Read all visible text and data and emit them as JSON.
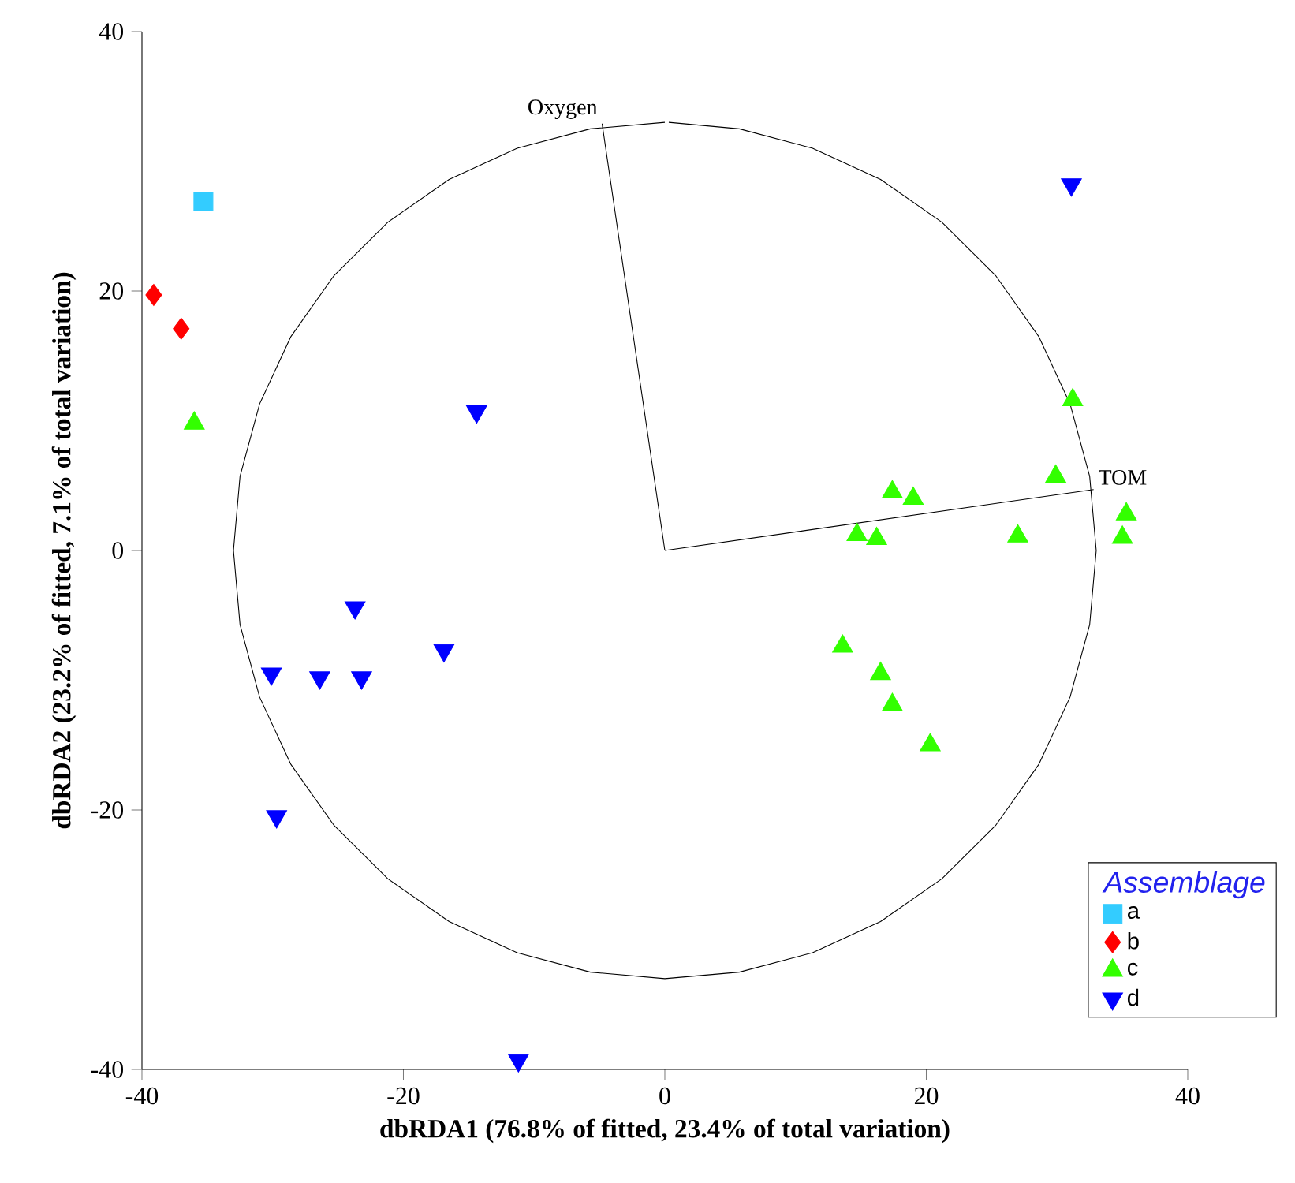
{
  "chart_data": {
    "type": "scatter",
    "xlabel": "dbRDA1 (76.8% of fitted, 23.4% of total variation)",
    "ylabel": "dbRDA2 (23.2% of fitted, 7.1% of total variation)",
    "legend_title": "Assemblage",
    "legend": "bottom right",
    "grid": false,
    "xlim": [
      -40,
      40
    ],
    "ylim": [
      -40,
      40
    ],
    "xticks": [
      -40,
      -20,
      0,
      20,
      40
    ],
    "yticks": [
      -40,
      -20,
      0,
      20,
      40
    ],
    "series": [
      {
        "name": "a",
        "color": "#33ccff",
        "marker": "square",
        "x": [
          -35.3
        ],
        "values": [
          26.9
        ]
      },
      {
        "name": "b",
        "color": "#ff0000",
        "marker": "diamond",
        "x": [
          -39.1,
          -37.0
        ],
        "values": [
          19.7,
          17.1
        ]
      },
      {
        "name": "c",
        "color": "#33ff00",
        "marker": "triangle",
        "x": [
          -36.0,
          31.2,
          29.9,
          17.4,
          19.0,
          35.3,
          14.7,
          16.2,
          27.0,
          35.0,
          13.6,
          16.5,
          17.4,
          20.3
        ],
        "values": [
          9.8,
          11.6,
          5.7,
          4.5,
          4.0,
          2.8,
          1.2,
          0.9,
          1.1,
          1.0,
          -7.4,
          -9.5,
          -11.9,
          -15.0
        ]
      },
      {
        "name": "d",
        "color": "#0000ff",
        "marker": "triangle-down",
        "x": [
          31.1,
          -14.4,
          -23.7,
          -16.9,
          -30.1,
          -26.4,
          -23.2,
          -29.7,
          -11.2
        ],
        "values": [
          28.2,
          10.7,
          -4.4,
          -7.7,
          -9.5,
          -9.8,
          -9.8,
          -20.5,
          -39.3
        ]
      },
      {
        "type": "line",
        "color": "#000000",
        "marker": "none",
        "x": [
          0,
          -5.7,
          -11.3,
          -16.5,
          -21.2,
          -25.3,
          -28.6,
          -31.0,
          -32.5,
          -33,
          -32.5,
          -31.0,
          -28.6,
          -25.3,
          -21.2,
          -16.5,
          -11.3,
          -5.7,
          0,
          5.7,
          11.3,
          16.5,
          21.2,
          25.3,
          28.6,
          31.0,
          32.5,
          33,
          32.5,
          31.0,
          28.6,
          25.3,
          21.2,
          16.5,
          11.3,
          5.7,
          0.3
        ],
        "values": [
          33,
          32.5,
          31.0,
          28.6,
          25.3,
          21.2,
          16.5,
          11.3,
          5.7,
          0,
          -5.7,
          -11.3,
          -16.5,
          -21.2,
          -25.3,
          -28.6,
          -31.0,
          -32.5,
          -33,
          -32.5,
          -31.0,
          -28.6,
          -25.3,
          -21.2,
          -16.5,
          -11.3,
          -5.7,
          0,
          5.7,
          11.3,
          16.5,
          21.2,
          25.3,
          28.6,
          31.0,
          32.5,
          33
        ]
      },
      {
        "type": "line",
        "name": "Oxygen",
        "color": "#000000",
        "marker": "none",
        "x": [
          0,
          -4.8
        ],
        "values": [
          0,
          32.9
        ]
      },
      {
        "type": "line",
        "name": "TOM",
        "color": "#000000",
        "marker": "none",
        "x": [
          0,
          32.8
        ],
        "values": [
          0,
          4.7
        ]
      }
    ]
  }
}
